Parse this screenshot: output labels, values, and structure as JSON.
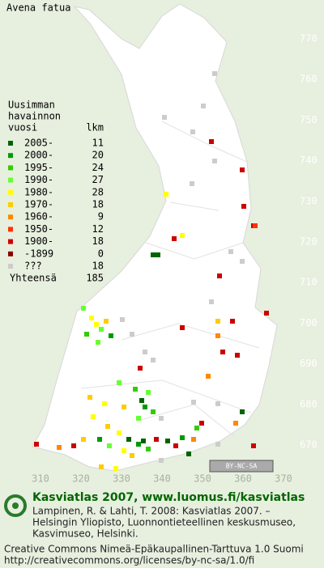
{
  "title": "Avena fatua",
  "legend": {
    "heading": [
      "Uusimman",
      "havainnon",
      "vuosi"
    ],
    "count_heading": "lkm",
    "rows": [
      {
        "color": "#006400",
        "label": "2005-",
        "count": 11
      },
      {
        "color": "#009a00",
        "label": "2000-",
        "count": 20
      },
      {
        "color": "#33cc00",
        "label": "1995-",
        "count": 24
      },
      {
        "color": "#66ff33",
        "label": "1990-",
        "count": 27
      },
      {
        "color": "#ffff00",
        "label": "1980-",
        "count": 28
      },
      {
        "color": "#ffcc00",
        "label": "1970-",
        "count": 18
      },
      {
        "color": "#ff8800",
        "label": "1960-",
        "count": 9
      },
      {
        "color": "#ff3300",
        "label": "1950-",
        "count": 12
      },
      {
        "color": "#cc0000",
        "label": "1900-",
        "count": 18
      },
      {
        "color": "#880000",
        "label": "-1899",
        "count": 0
      },
      {
        "color": "#cccccc",
        "label": "???",
        "count": 18
      }
    ],
    "total_label": "Yhteensä",
    "total": 185
  },
  "y_axis": [
    770,
    760,
    750,
    740,
    730,
    720,
    710,
    700,
    690,
    680,
    670
  ],
  "x_axis": [
    310,
    320,
    330,
    340,
    350,
    360,
    370
  ],
  "license_badge": "BY-NC-SA",
  "footer": {
    "brand": "Kasviatlas 2007, www.luomus.fi/kasviatlas",
    "citation": [
      "Lampinen, R. & Lahti, T. 2008: Kasviatlas 2007. –",
      "Helsingin Yliopisto, Luonnontieteellinen keskusmuseo,",
      "Kasvimuseo, Helsinki."
    ],
    "license": [
      "Creative Commons Nimeä-Epäkaupallinen-Tarttuva 1.0 Suomi",
      "http://creativecommons.org/licenses/by-nc-sa/1.0/fi"
    ]
  }
}
